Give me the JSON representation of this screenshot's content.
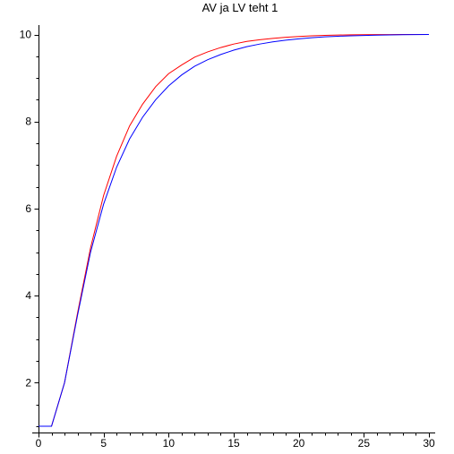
{
  "chart_data": {
    "type": "line",
    "title": "AV ja LV teht 1",
    "xlabel": "",
    "ylabel": "",
    "xlim": [
      0,
      30
    ],
    "ylim": [
      0.9,
      10.2
    ],
    "x_ticks": [
      0,
      5,
      10,
      15,
      20,
      25,
      30
    ],
    "y_ticks": [
      2,
      4,
      6,
      8,
      10
    ],
    "grid": false,
    "legend": "none",
    "series": [
      {
        "color": "#ff0000",
        "points": [
          [
            0,
            1
          ],
          [
            1,
            1
          ],
          [
            2,
            2
          ],
          [
            3,
            3.6
          ],
          [
            4,
            5.1
          ],
          [
            5,
            6.3
          ],
          [
            6,
            7.2
          ],
          [
            7,
            7.9
          ],
          [
            8,
            8.4
          ],
          [
            9,
            8.8
          ],
          [
            10,
            9.1
          ],
          [
            11,
            9.3
          ],
          [
            12,
            9.48
          ],
          [
            13,
            9.6
          ],
          [
            14,
            9.7
          ],
          [
            15,
            9.78
          ],
          [
            16,
            9.84
          ],
          [
            17,
            9.88
          ],
          [
            18,
            9.91
          ],
          [
            19,
            9.935
          ],
          [
            20,
            9.955
          ],
          [
            21,
            9.97
          ],
          [
            22,
            9.98
          ],
          [
            23,
            9.987
          ],
          [
            24,
            9.992
          ],
          [
            25,
            9.995
          ],
          [
            26,
            9.997
          ],
          [
            27,
            9.998
          ],
          [
            28,
            9.999
          ],
          [
            29,
            10
          ],
          [
            30,
            10
          ]
        ]
      },
      {
        "color": "#0000ff",
        "points": [
          [
            0,
            1
          ],
          [
            1,
            1
          ],
          [
            2,
            2
          ],
          [
            3,
            3.55
          ],
          [
            4,
            5
          ],
          [
            5,
            6.1
          ],
          [
            6,
            6.95
          ],
          [
            7,
            7.6
          ],
          [
            8,
            8.1
          ],
          [
            9,
            8.5
          ],
          [
            10,
            8.82
          ],
          [
            11,
            9.07
          ],
          [
            12,
            9.27
          ],
          [
            13,
            9.42
          ],
          [
            14,
            9.54
          ],
          [
            15,
            9.64
          ],
          [
            16,
            9.72
          ],
          [
            17,
            9.78
          ],
          [
            18,
            9.83
          ],
          [
            19,
            9.87
          ],
          [
            20,
            9.9
          ],
          [
            21,
            9.925
          ],
          [
            22,
            9.945
          ],
          [
            23,
            9.96
          ],
          [
            24,
            9.97
          ],
          [
            25,
            9.978
          ],
          [
            26,
            9.985
          ],
          [
            27,
            9.99
          ],
          [
            28,
            9.994
          ],
          [
            29,
            9.997
          ],
          [
            30,
            10
          ]
        ]
      }
    ]
  }
}
